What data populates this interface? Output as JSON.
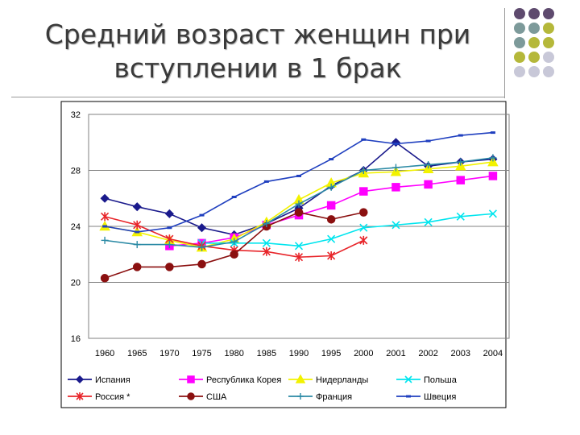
{
  "slide": {
    "title_line1": "Средний возраст женщин при",
    "title_line2": "вступлении в 1 брак"
  },
  "decor": {
    "dot_rows": [
      [
        "#5e4a6e",
        "#5e4a6e",
        "#5e4a6e"
      ],
      [
        "#7d9a9a",
        "#7d9a9a",
        "#b5b83a"
      ],
      [
        "#7d9a9a",
        "#b5b83a",
        "#b5b83a"
      ],
      [
        "#b5b83a",
        "#b5b83a",
        "#c8c8d8"
      ],
      [
        "#c8c8d8",
        "#c8c8d8",
        "#c8c8d8"
      ]
    ]
  },
  "chart_data": {
    "type": "line",
    "title": "",
    "xlabel": "",
    "ylabel": "",
    "categories": [
      "1960",
      "1965",
      "1970",
      "1975",
      "1980",
      "1985",
      "1990",
      "1995",
      "2000",
      "2001",
      "2002",
      "2003",
      "2004"
    ],
    "ylim": [
      16,
      32
    ],
    "yticks": [
      16,
      20,
      24,
      28,
      32
    ],
    "grid": true,
    "legend_position": "bottom",
    "series": [
      {
        "name": "Испания",
        "color": "#1a1a8c",
        "marker": "diamond",
        "values": [
          26.0,
          25.4,
          24.9,
          23.9,
          23.4,
          24.2,
          25.3,
          26.9,
          28.0,
          30.0,
          28.3,
          28.6,
          28.8
        ]
      },
      {
        "name": "Республика Корея",
        "color": "#ff00ff",
        "marker": "square",
        "values": [
          null,
          null,
          22.6,
          22.8,
          23.2,
          24.1,
          24.8,
          25.5,
          26.5,
          26.8,
          27.0,
          27.3,
          27.6
        ]
      },
      {
        "name": "Нидерланды",
        "color": "#f2f200",
        "marker": "triangle",
        "values": [
          24.0,
          23.6,
          23.0,
          22.5,
          23.1,
          24.3,
          25.9,
          27.1,
          27.8,
          27.9,
          28.1,
          28.3,
          28.6
        ]
      },
      {
        "name": "Польша",
        "color": "#00e5ee",
        "marker": "x",
        "values": [
          null,
          null,
          null,
          22.8,
          22.8,
          22.8,
          22.6,
          23.1,
          23.9,
          24.1,
          24.3,
          24.7,
          24.9
        ]
      },
      {
        "name": "Россия *",
        "color": "#e8252a",
        "marker": "asterisk",
        "values": [
          24.7,
          24.1,
          23.1,
          22.6,
          22.3,
          22.2,
          21.8,
          21.9,
          23.0,
          null,
          null,
          null,
          null
        ]
      },
      {
        "name": "США",
        "color": "#8b1010",
        "marker": "circle",
        "values": [
          20.3,
          21.1,
          21.1,
          21.3,
          22.0,
          24.0,
          25.0,
          24.5,
          25.0,
          null,
          null,
          null,
          null
        ]
      },
      {
        "name": "Франция",
        "color": "#2b8aa5",
        "marker": "plus",
        "values": [
          23.0,
          22.7,
          22.7,
          22.5,
          22.9,
          24.2,
          25.6,
          26.8,
          28.0,
          28.2,
          28.4,
          28.6,
          28.9
        ]
      },
      {
        "name": "Швеция",
        "color": "#1f3fbf",
        "marker": "dash",
        "values": [
          24.0,
          23.6,
          23.9,
          24.8,
          26.1,
          27.2,
          27.6,
          28.8,
          30.2,
          29.9,
          30.1,
          30.5,
          30.7
        ]
      }
    ]
  }
}
